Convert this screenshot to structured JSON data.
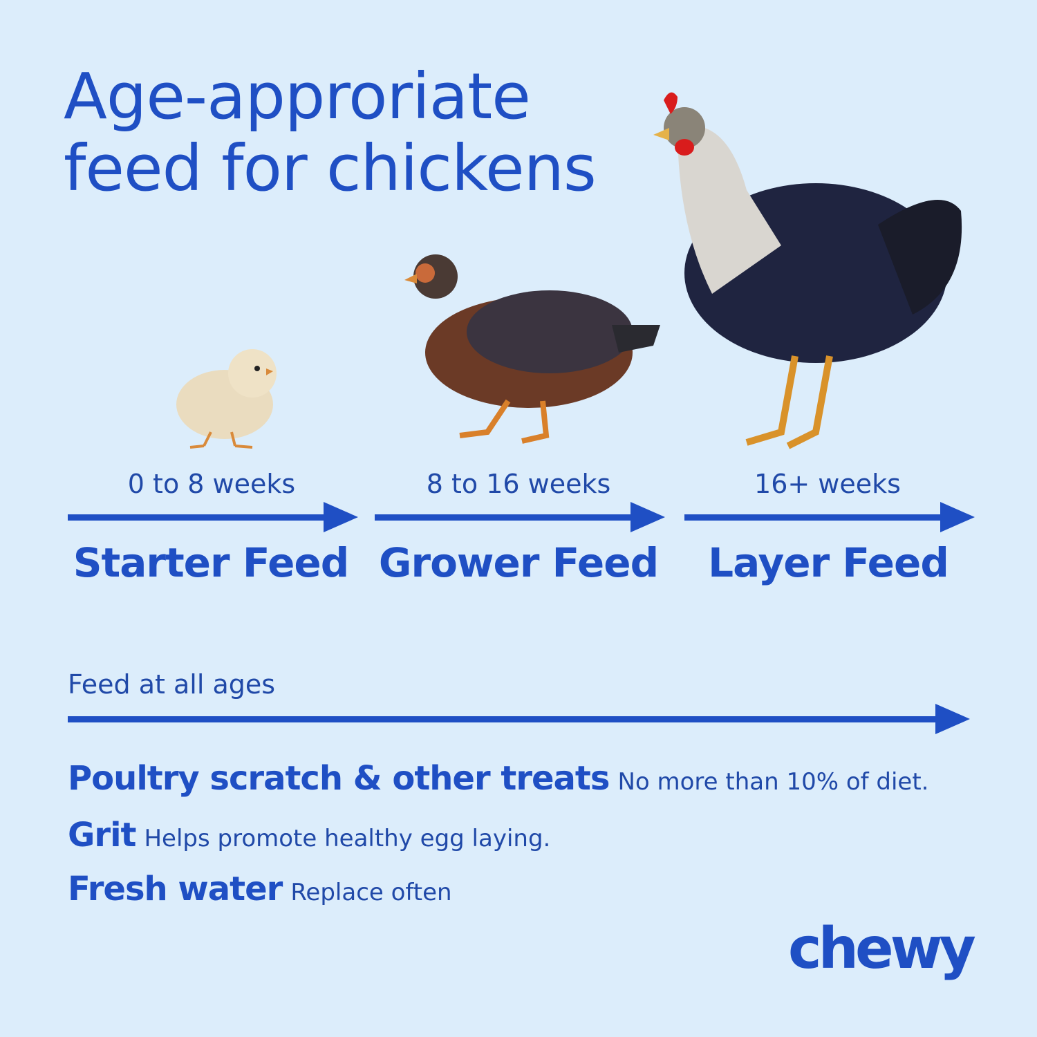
{
  "title": {
    "line1": "Age-approriate",
    "line2": "feed for chickens"
  },
  "colors": {
    "background": "#dcedfb",
    "accent": "#1f4fc4"
  },
  "stages": [
    {
      "age": "0 to 8 weeks",
      "feed": "Starter Feed",
      "image": "chick"
    },
    {
      "age": "8 to 16 weeks",
      "feed": "Grower Feed",
      "image": "pullet"
    },
    {
      "age": "16+ weeks",
      "feed": "Layer Feed",
      "image": "hen"
    }
  ],
  "all_ages": {
    "label": "Feed at all ages",
    "items": [
      {
        "name": "Poultry scratch & other treats",
        "note": "No more than 10% of diet."
      },
      {
        "name": "Grit",
        "note": "Helps promote healthy egg laying."
      },
      {
        "name": "Fresh water",
        "note": "Replace often"
      }
    ]
  },
  "brand": {
    "logo": "chewy"
  }
}
